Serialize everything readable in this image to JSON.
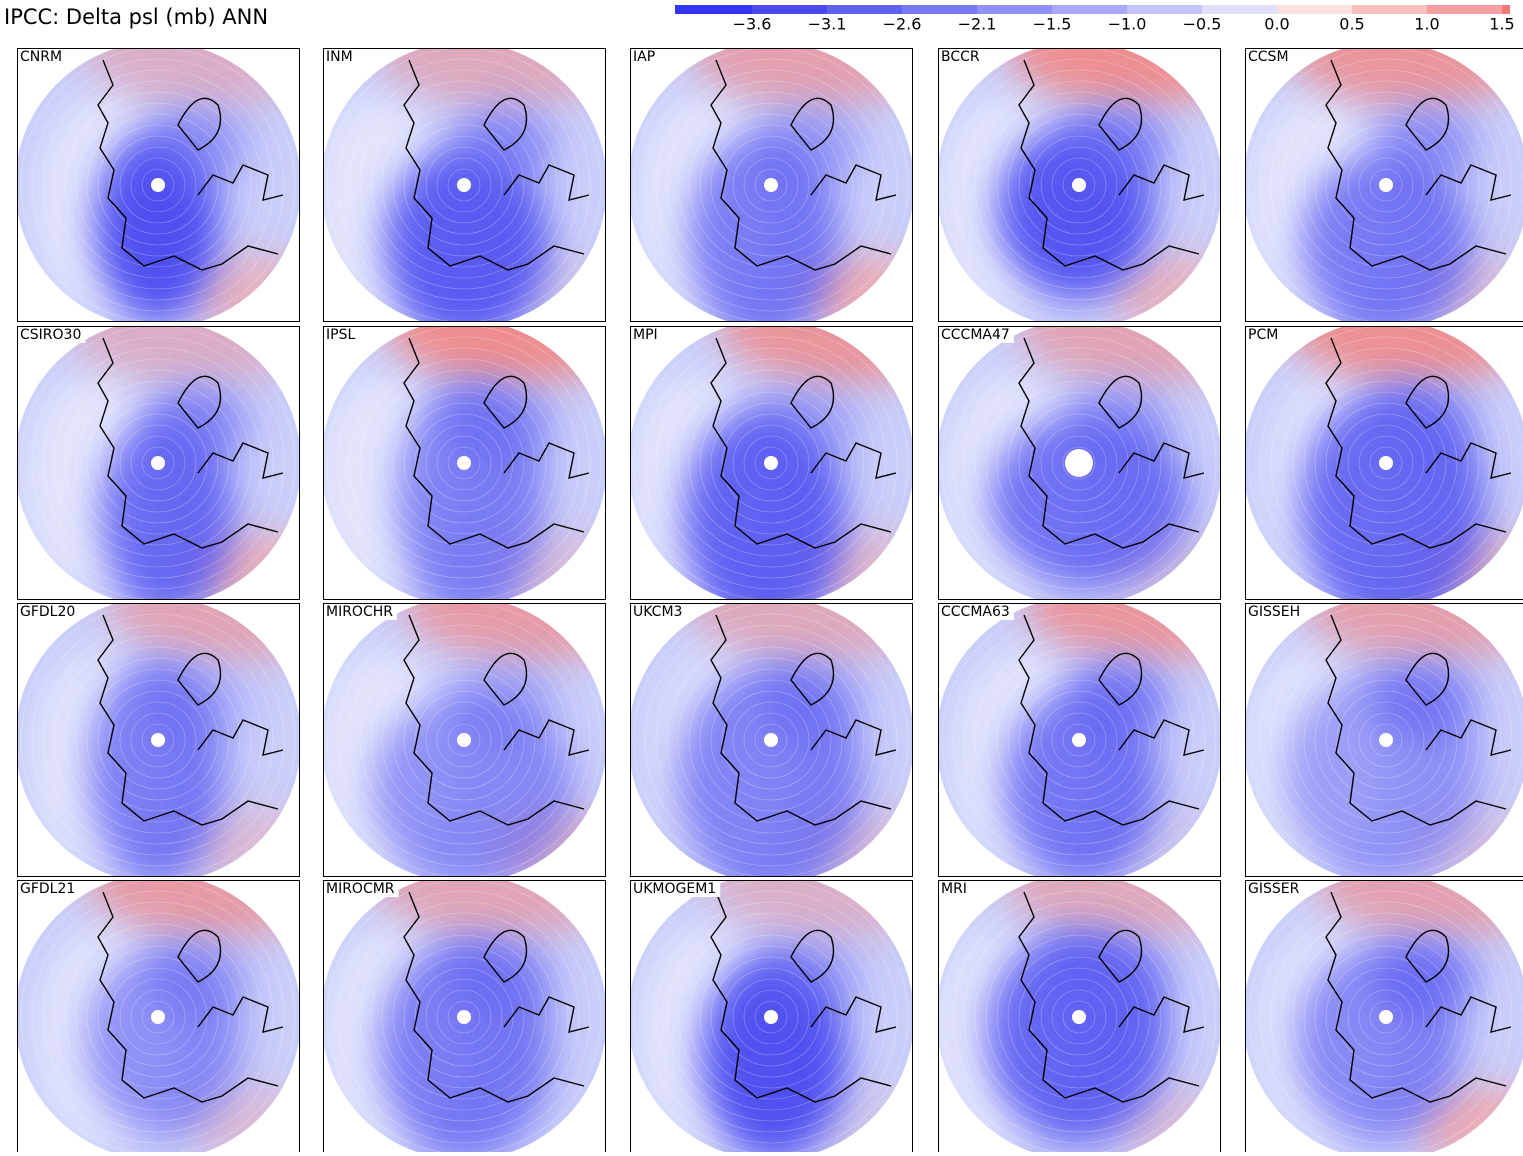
{
  "title": "IPCC: Delta psl (mb) ANN",
  "colorbar": {
    "labels": [
      "−3.6",
      "−3.1",
      "−2.6",
      "−2.1",
      "−1.5",
      "−1.0",
      "−0.5",
      "0.0",
      "0.5",
      "1.0",
      "1.5"
    ],
    "colors": [
      "#3535f5",
      "#4a4af5",
      "#6060f5",
      "#7878f5",
      "#9090f7",
      "#a8a8f9",
      "#c4c4fb",
      "#e0e0fd",
      "#fde0e0",
      "#f9c0c0",
      "#f5a0a0",
      "#f07878"
    ]
  },
  "panels": [
    "CNRM",
    "INM",
    "IAP",
    "BCCR",
    "CCSM",
    "CSIRO30",
    "IPSL",
    "MPI",
    "CCCMA47",
    "PCM",
    "GFDL20",
    "MIROCHR",
    "UKCM3",
    "CCCMA63",
    "GISSEH",
    "GFDL21",
    "MIROCMR",
    "UKMOGEM1",
    "MRI",
    "GISSER"
  ]
}
